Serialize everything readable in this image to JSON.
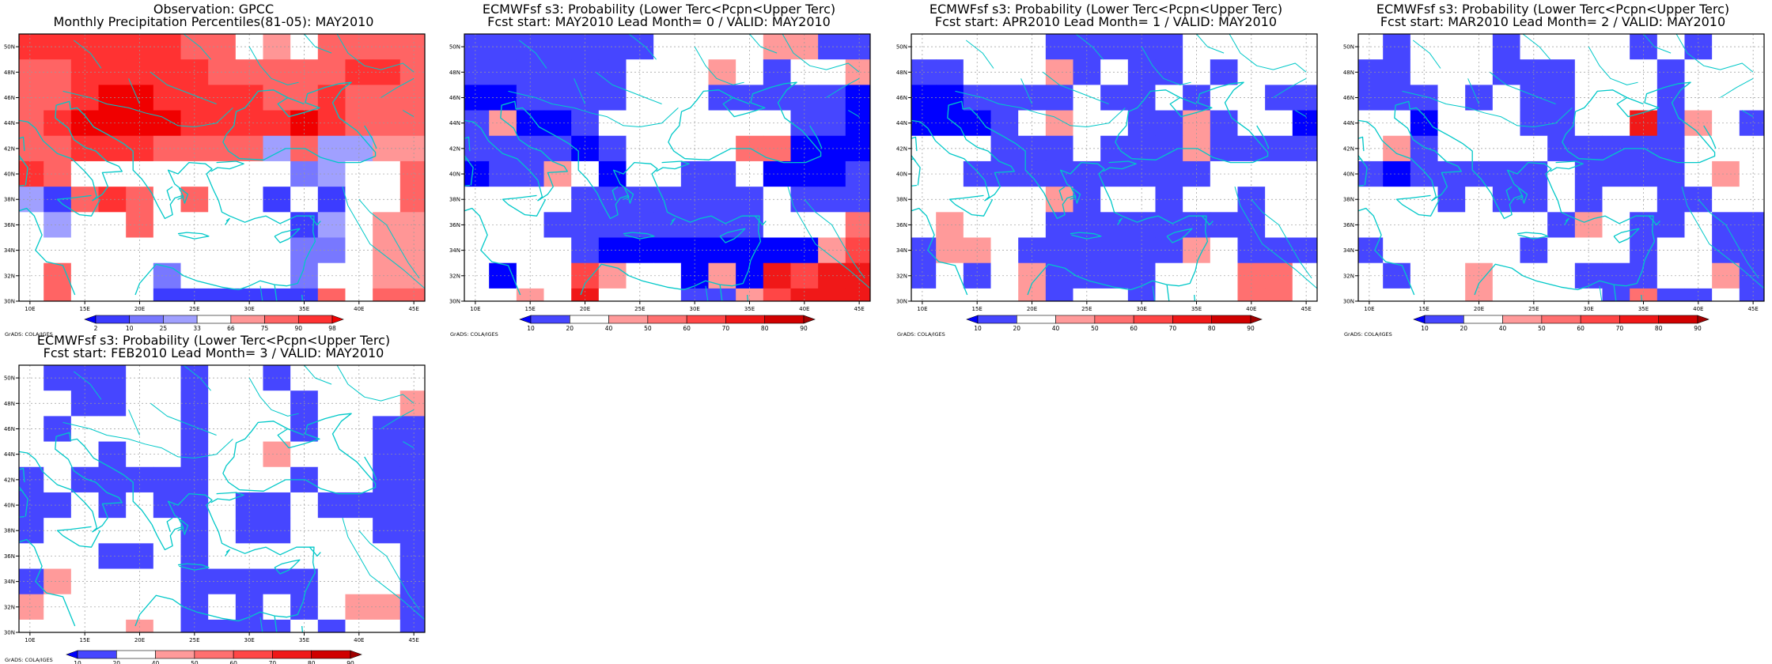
{
  "figure": {
    "credit": "GrADS: COLA/IGES"
  },
  "legend_obs": {
    "labels": [
      "2",
      "10",
      "25",
      "33",
      "66",
      "75",
      "90",
      "98"
    ],
    "colors": [
      "#0000ff",
      "#3c3cff",
      "#7878ff",
      "#a0a0ff",
      "#ffffff",
      "#ff9696",
      "#ff6464",
      "#ff3232",
      "#f00000"
    ]
  },
  "legend_prob": {
    "labels": [
      "10",
      "20",
      "40",
      "50",
      "60",
      "70",
      "80",
      "90"
    ],
    "colors": [
      "#0000ff",
      "#4646ff",
      "#ffffff",
      "#ff9a9a",
      "#ff7070",
      "#ff4646",
      "#f01818",
      "#d00000",
      "#a00000"
    ]
  },
  "panels": [
    {
      "title1": "Observation: GPCC",
      "title2": "Monthly Precipitation Percentiles(81-05): MAY2010"
    },
    {
      "title1": "ECMWFsf s3: Probability (Lower Terc<Pcpn<Upper Terc)",
      "title2": "Fcst start: MAY2010  Lead Month= 0 / VALID: MAY2010"
    },
    {
      "title1": "ECMWFsf s3: Probability (Lower Terc<Pcpn<Upper Terc)",
      "title2": "Fcst start: APR2010  Lead Month= 1 / VALID: MAY2010"
    },
    {
      "title1": "ECMWFsf s3: Probability (Lower Terc<Pcpn<Upper Terc)",
      "title2": "Fcst start: MAR2010  Lead Month= 2 / VALID: MAY2010"
    },
    {
      "title1": "ECMWFsf s3: Probability (Lower Terc<Pcpn<Upper Terc)",
      "title2": "Fcst start: FEB2010  Lead Month= 3 / VALID: MAY2010"
    }
  ],
  "chart_data": [
    {
      "type": "heatmap",
      "lon_range": [
        9,
        46
      ],
      "lat_range": [
        30,
        51
      ],
      "lon_step": 2.5,
      "lat_step": 2,
      "x_ticks": [
        "10E",
        "15E",
        "20E",
        "25E",
        "30E",
        "35E",
        "40E",
        "45E"
      ],
      "y_ticks": [
        "30N",
        "32N",
        "34N",
        "36N",
        "38N",
        "40N",
        "42N",
        "44N",
        "46N",
        "48N",
        "50N"
      ],
      "grid": true,
      "rows_top_to_bottom": [
        [
          7,
          7,
          7,
          7,
          7,
          7,
          6,
          6,
          4,
          5,
          4,
          6,
          6,
          6,
          6
        ],
        [
          6,
          6,
          7,
          7,
          7,
          7,
          7,
          6,
          6,
          6,
          6,
          6,
          7,
          7,
          6
        ],
        [
          6,
          6,
          7,
          8,
          8,
          7,
          7,
          7,
          7,
          6,
          6,
          7,
          6,
          6,
          6
        ],
        [
          6,
          7,
          8,
          8,
          8,
          8,
          7,
          7,
          7,
          7,
          8,
          7,
          6,
          6,
          6
        ],
        [
          6,
          6,
          7,
          7,
          7,
          6,
          6,
          6,
          6,
          3,
          6,
          3,
          3,
          5,
          5
        ],
        [
          7,
          6,
          4,
          4,
          4,
          4,
          4,
          4,
          4,
          4,
          2,
          3,
          4,
          4,
          6
        ],
        [
          3,
          1,
          6,
          7,
          6,
          4,
          6,
          4,
          4,
          1,
          4,
          1,
          4,
          4,
          6
        ],
        [
          4,
          3,
          4,
          4,
          6,
          4,
          4,
          4,
          4,
          4,
          1,
          3,
          4,
          5,
          5
        ],
        [
          4,
          4,
          4,
          4,
          4,
          4,
          4,
          4,
          4,
          4,
          2,
          2,
          4,
          5,
          5
        ],
        [
          4,
          6,
          4,
          4,
          4,
          2,
          4,
          4,
          4,
          4,
          2,
          4,
          4,
          5,
          5
        ],
        [
          4,
          6,
          4,
          4,
          4,
          1,
          1,
          1,
          1,
          1,
          1,
          6,
          4,
          6,
          6
        ]
      ]
    },
    {
      "type": "heatmap",
      "lon_range": [
        9,
        46
      ],
      "lat_range": [
        30,
        51
      ],
      "lon_step": 2.5,
      "lat_step": 2,
      "x_ticks": [
        "10E",
        "15E",
        "20E",
        "25E",
        "30E",
        "35E",
        "40E",
        "45E"
      ],
      "y_ticks": [
        "30N",
        "32N",
        "34N",
        "36N",
        "38N",
        "40N",
        "42N",
        "44N",
        "46N",
        "48N",
        "50N"
      ],
      "grid": true,
      "rows_top_to_bottom": [
        [
          1,
          1,
          1,
          1,
          1,
          1,
          1,
          2,
          2,
          2,
          2,
          3,
          3,
          1,
          1
        ],
        [
          1,
          1,
          1,
          1,
          1,
          1,
          2,
          2,
          2,
          3,
          2,
          1,
          2,
          2,
          3
        ],
        [
          0,
          0,
          1,
          1,
          1,
          1,
          2,
          2,
          2,
          1,
          1,
          1,
          1,
          1,
          0
        ],
        [
          1,
          3,
          0,
          0,
          1,
          2,
          2,
          2,
          2,
          2,
          2,
          2,
          1,
          1,
          0
        ],
        [
          1,
          1,
          1,
          1,
          0,
          1,
          2,
          2,
          2,
          2,
          4,
          4,
          0,
          0,
          0
        ],
        [
          0,
          1,
          1,
          3,
          2,
          0,
          2,
          2,
          1,
          1,
          2,
          0,
          0,
          0,
          1
        ],
        [
          2,
          2,
          2,
          2,
          1,
          1,
          1,
          1,
          1,
          1,
          1,
          2,
          1,
          1,
          1
        ],
        [
          2,
          2,
          2,
          1,
          1,
          1,
          1,
          1,
          1,
          1,
          1,
          2,
          2,
          2,
          4
        ],
        [
          2,
          2,
          2,
          2,
          1,
          0,
          0,
          0,
          0,
          0,
          0,
          0,
          0,
          3,
          5
        ],
        [
          2,
          0,
          2,
          2,
          5,
          3,
          2,
          2,
          0,
          3,
          0,
          6,
          5,
          6,
          6
        ],
        [
          2,
          2,
          3,
          2,
          6,
          2,
          2,
          2,
          1,
          1,
          3,
          5,
          6,
          6,
          6
        ]
      ]
    },
    {
      "type": "heatmap",
      "lon_range": [
        9,
        46
      ],
      "lat_range": [
        30,
        51
      ],
      "lon_step": 2.5,
      "lat_step": 2,
      "x_ticks": [
        "10E",
        "15E",
        "20E",
        "25E",
        "30E",
        "35E",
        "40E",
        "45E"
      ],
      "y_ticks": [
        "30N",
        "32N",
        "34N",
        "36N",
        "38N",
        "40N",
        "42N",
        "44N",
        "46N",
        "48N",
        "50N"
      ],
      "grid": true,
      "rows_top_to_bottom": [
        [
          2,
          2,
          2,
          2,
          2,
          1,
          1,
          1,
          1,
          1,
          2,
          2,
          2,
          2,
          2
        ],
        [
          1,
          1,
          2,
          2,
          2,
          3,
          1,
          2,
          1,
          1,
          2,
          1,
          2,
          2,
          2
        ],
        [
          0,
          0,
          1,
          1,
          1,
          1,
          2,
          1,
          1,
          2,
          1,
          2,
          2,
          1,
          1
        ],
        [
          0,
          0,
          0,
          1,
          2,
          3,
          2,
          2,
          1,
          1,
          3,
          1,
          2,
          2,
          0
        ],
        [
          2,
          2,
          2,
          1,
          1,
          1,
          2,
          1,
          1,
          1,
          3,
          1,
          1,
          1,
          1
        ],
        [
          2,
          2,
          1,
          1,
          1,
          1,
          1,
          1,
          1,
          1,
          1,
          2,
          2,
          2,
          2
        ],
        [
          2,
          2,
          2,
          2,
          2,
          3,
          1,
          2,
          2,
          1,
          2,
          2,
          1,
          2,
          2
        ],
        [
          2,
          3,
          2,
          2,
          2,
          1,
          1,
          1,
          1,
          1,
          1,
          1,
          1,
          2,
          2
        ],
        [
          1,
          3,
          3,
          2,
          1,
          1,
          1,
          1,
          1,
          1,
          3,
          2,
          1,
          1,
          1
        ],
        [
          1,
          2,
          1,
          2,
          3,
          1,
          1,
          1,
          1,
          2,
          2,
          2,
          4,
          4,
          2
        ],
        [
          2,
          2,
          2,
          2,
          3,
          1,
          2,
          2,
          1,
          2,
          2,
          2,
          4,
          4,
          2
        ]
      ]
    },
    {
      "type": "heatmap",
      "lon_range": [
        9,
        46
      ],
      "lat_range": [
        30,
        51
      ],
      "lon_step": 2.5,
      "lat_step": 2,
      "x_ticks": [
        "10E",
        "15E",
        "20E",
        "25E",
        "30E",
        "35E",
        "40E",
        "45E"
      ],
      "y_ticks": [
        "30N",
        "32N",
        "34N",
        "36N",
        "38N",
        "40N",
        "42N",
        "44N",
        "46N",
        "48N",
        "50N"
      ],
      "grid": true,
      "rows_top_to_bottom": [
        [
          2,
          1,
          2,
          2,
          2,
          1,
          2,
          2,
          2,
          2,
          1,
          2,
          1,
          2,
          2
        ],
        [
          1,
          1,
          2,
          2,
          2,
          1,
          1,
          1,
          2,
          2,
          2,
          1,
          2,
          2,
          2
        ],
        [
          1,
          1,
          1,
          2,
          1,
          2,
          1,
          1,
          2,
          2,
          2,
          1,
          2,
          2,
          2
        ],
        [
          2,
          2,
          0,
          2,
          2,
          2,
          1,
          1,
          2,
          2,
          6,
          1,
          3,
          2,
          1
        ],
        [
          2,
          3,
          1,
          2,
          2,
          2,
          2,
          1,
          1,
          1,
          1,
          1,
          2,
          2,
          2
        ],
        [
          1,
          0,
          1,
          1,
          1,
          1,
          1,
          2,
          1,
          1,
          1,
          1,
          2,
          3,
          2
        ],
        [
          2,
          2,
          2,
          1,
          2,
          1,
          1,
          2,
          1,
          2,
          2,
          1,
          1,
          2,
          2
        ],
        [
          2,
          2,
          2,
          2,
          2,
          2,
          2,
          1,
          3,
          2,
          1,
          1,
          2,
          1,
          1
        ],
        [
          1,
          2,
          2,
          2,
          2,
          2,
          1,
          2,
          2,
          2,
          1,
          2,
          2,
          1,
          1
        ],
        [
          2,
          1,
          2,
          2,
          3,
          2,
          2,
          2,
          1,
          1,
          1,
          2,
          2,
          3,
          1
        ],
        [
          2,
          2,
          2,
          2,
          3,
          2,
          2,
          2,
          2,
          1,
          4,
          1,
          1,
          2,
          1
        ]
      ]
    },
    {
      "type": "heatmap",
      "lon_range": [
        9,
        46
      ],
      "lat_range": [
        30,
        51
      ],
      "lon_step": 2.5,
      "lat_step": 2,
      "x_ticks": [
        "10E",
        "15E",
        "20E",
        "25E",
        "30E",
        "35E",
        "40E",
        "45E"
      ],
      "y_ticks": [
        "30N",
        "32N",
        "34N",
        "36N",
        "38N",
        "40N",
        "42N",
        "44N",
        "46N",
        "48N",
        "50N"
      ],
      "grid": true,
      "rows_top_to_bottom": [
        [
          2,
          1,
          1,
          1,
          2,
          2,
          1,
          2,
          2,
          1,
          2,
          2,
          2,
          2,
          2
        ],
        [
          2,
          2,
          1,
          1,
          2,
          2,
          1,
          2,
          2,
          2,
          1,
          2,
          2,
          2,
          3
        ],
        [
          2,
          1,
          2,
          2,
          2,
          2,
          1,
          2,
          2,
          2,
          1,
          2,
          2,
          1,
          1
        ],
        [
          2,
          2,
          2,
          1,
          2,
          2,
          1,
          2,
          2,
          3,
          2,
          2,
          2,
          1,
          1
        ],
        [
          1,
          2,
          1,
          1,
          1,
          1,
          1,
          2,
          2,
          2,
          1,
          2,
          2,
          1,
          1
        ],
        [
          1,
          1,
          2,
          1,
          2,
          1,
          1,
          2,
          1,
          1,
          2,
          1,
          1,
          1,
          1
        ],
        [
          1,
          2,
          2,
          2,
          2,
          2,
          1,
          2,
          1,
          1,
          2,
          2,
          2,
          1,
          1
        ],
        [
          2,
          2,
          2,
          1,
          1,
          2,
          1,
          2,
          2,
          2,
          2,
          2,
          2,
          2,
          1
        ],
        [
          1,
          3,
          2,
          2,
          2,
          2,
          1,
          1,
          1,
          1,
          1,
          2,
          2,
          2,
          1
        ],
        [
          3,
          2,
          2,
          2,
          2,
          2,
          1,
          2,
          1,
          2,
          1,
          2,
          3,
          3,
          1
        ],
        [
          2,
          2,
          2,
          2,
          3,
          2,
          1,
          1,
          1,
          1,
          2,
          1,
          2,
          2,
          1
        ]
      ]
    }
  ]
}
